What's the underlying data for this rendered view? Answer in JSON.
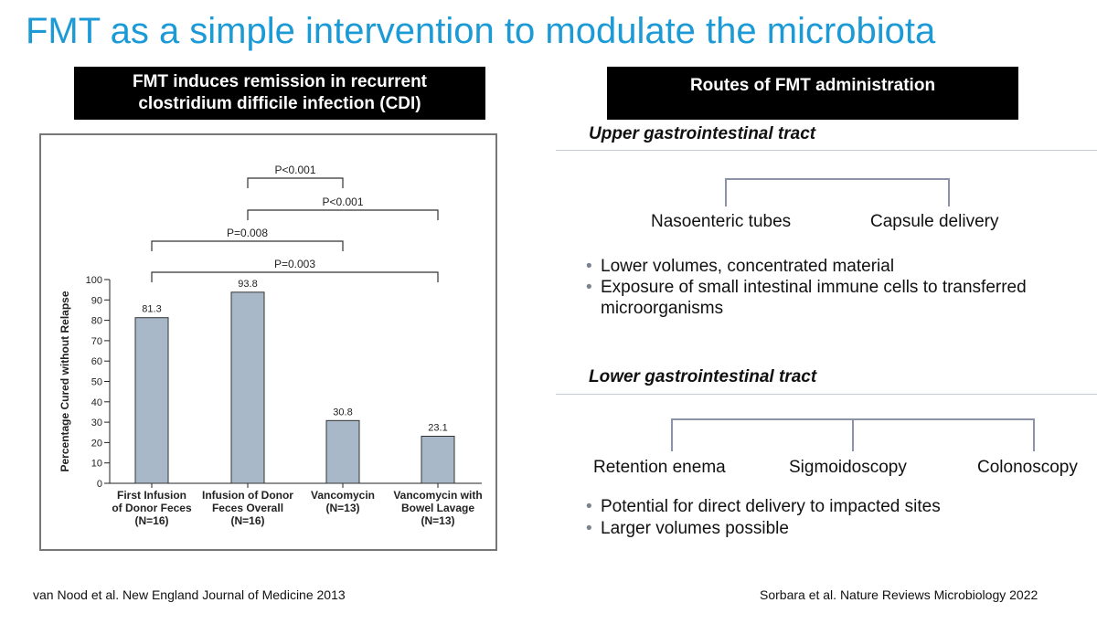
{
  "title": "FMT as a simple intervention to modulate the microbiota",
  "left_panel": {
    "header_line1": "FMT induces remission in recurrent",
    "header_line2": "clostridium difficile infection (CDI)"
  },
  "chart_data": {
    "type": "bar",
    "ylabel": "Percentage Cured without Relapse",
    "ylim": [
      0,
      100
    ],
    "yticks": [
      0,
      10,
      20,
      30,
      40,
      50,
      60,
      70,
      80,
      90,
      100
    ],
    "categories": [
      {
        "lines": [
          "First Infusion",
          "of Donor Feces",
          "(N=16)"
        ]
      },
      {
        "lines": [
          "Infusion of Donor",
          "Feces Overall",
          "(N=16)"
        ]
      },
      {
        "lines": [
          "Vancomycin",
          "(N=13)"
        ]
      },
      {
        "lines": [
          "Vancomycin with",
          "Bowel Lavage",
          "(N=13)"
        ]
      }
    ],
    "values": [
      81.3,
      93.8,
      30.8,
      23.1
    ],
    "value_labels": [
      "81.3",
      "93.8",
      "30.8",
      "23.1"
    ],
    "bar_color": "#a9b8c8",
    "comparisons": [
      {
        "from": 1,
        "to": 2,
        "label": "P<0.001"
      },
      {
        "from": 1,
        "to": 3,
        "label": "P<0.001"
      },
      {
        "from": 0,
        "to": 2,
        "label": "P=0.008"
      },
      {
        "from": 0,
        "to": 3,
        "label": "P=0.003"
      }
    ]
  },
  "right_panel": {
    "header": "Routes of FMT administration",
    "upper": {
      "title": "Upper gastrointestinal tract",
      "routes": [
        "Nasoenteric tubes",
        "Capsule delivery"
      ],
      "bullets": [
        [
          "Lower volumes, concentrated material"
        ],
        [
          "Exposure of small intestinal immune cells to transferred",
          "microorganisms"
        ]
      ]
    },
    "lower": {
      "title": "Lower gastrointestinal tract",
      "routes": [
        "Retention enema",
        "Sigmoidoscopy",
        "Colonoscopy"
      ],
      "bullets": [
        [
          "Potential for direct delivery to impacted sites"
        ],
        [
          "Larger volumes possible"
        ]
      ]
    }
  },
  "citations": {
    "left": "van Nood et al. New England Journal of Medicine 2013",
    "right": "Sorbara et al. Nature Reviews Microbiology 2022"
  },
  "colors": {
    "title": "#1c9ad6",
    "tree_line": "#8c93a8"
  }
}
